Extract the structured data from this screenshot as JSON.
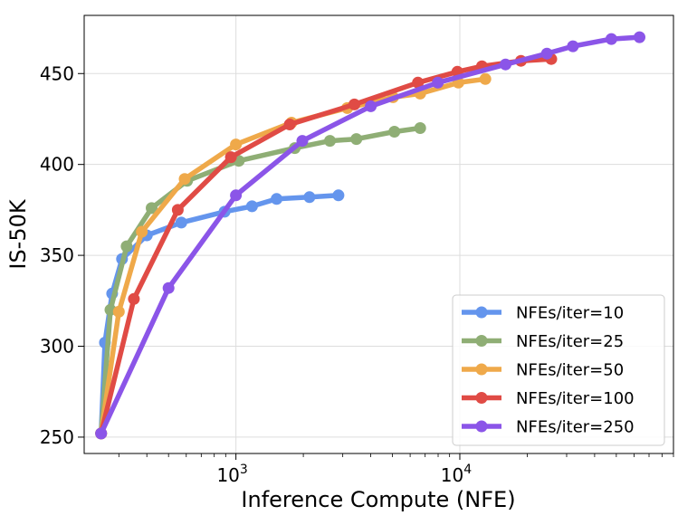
{
  "chart_data": {
    "type": "line",
    "xlabel": "Inference Compute (NFE)",
    "ylabel": "IS-50K",
    "xscale": "log",
    "xlim": [
      210,
      90000
    ],
    "ylim": [
      241,
      482
    ],
    "x_ticks": [
      {
        "value": 1000,
        "base": "10",
        "exp": "3"
      },
      {
        "value": 10000,
        "base": "10",
        "exp": "4"
      }
    ],
    "y_ticks": [
      250,
      300,
      350,
      400,
      450
    ],
    "grid": true,
    "legend_position": "bottom-right",
    "series": [
      {
        "name": "NFEs/iter=10",
        "color": "#6495ED",
        "x": [
          250,
          260,
          280,
          310,
          400,
          570,
          890,
          1180,
          1520,
          2130,
          2870
        ],
        "y": [
          252,
          302,
          329,
          348,
          361,
          368,
          374,
          377,
          381,
          382,
          383
        ]
      },
      {
        "name": "NFEs/iter=25",
        "color": "#8FAE75",
        "x": [
          250,
          275,
          325,
          420,
          605,
          1030,
          1830,
          2630,
          3450,
          5100,
          6650
        ],
        "y": [
          252,
          320,
          355,
          376,
          391,
          402,
          409,
          413,
          414,
          418,
          420
        ]
      },
      {
        "name": "NFEs/iter=50",
        "color": "#EFA94A",
        "x": [
          250,
          300,
          380,
          590,
          1000,
          1770,
          3140,
          5030,
          6650,
          9850,
          13000
        ],
        "y": [
          252,
          319,
          363,
          392,
          411,
          423,
          431,
          437,
          439,
          445,
          447
        ]
      },
      {
        "name": "NFEs/iter=100",
        "color": "#E04B45",
        "x": [
          250,
          350,
          550,
          950,
          1740,
          3380,
          6500,
          9750,
          12550,
          18750,
          25600
        ],
        "y": [
          252,
          326,
          375,
          404,
          422,
          433,
          445,
          451,
          454,
          457,
          458
        ]
      },
      {
        "name": "NFEs/iter=250",
        "color": "#8B55E8",
        "x": [
          250,
          500,
          1000,
          1980,
          4000,
          7980,
          16000,
          24500,
          32000,
          47500,
          63500
        ],
        "y": [
          252,
          332,
          383,
          413,
          432,
          445,
          455,
          461,
          465,
          469,
          470
        ]
      }
    ]
  }
}
